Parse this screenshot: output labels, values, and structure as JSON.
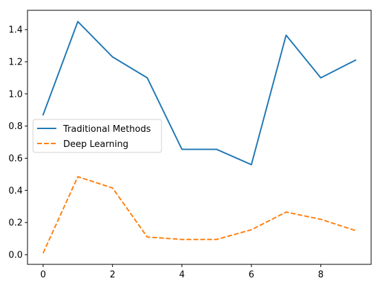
{
  "chart_data": {
    "type": "line",
    "x": [
      0,
      1,
      2,
      3,
      4,
      5,
      6,
      7,
      8,
      9
    ],
    "series": [
      {
        "name": "Traditional Methods",
        "values": [
          0.87,
          1.45,
          1.23,
          1.1,
          0.655,
          0.655,
          0.56,
          1.365,
          1.1,
          1.21
        ],
        "color": "#1f77b4",
        "style": "solid"
      },
      {
        "name": "Deep Learning",
        "values": [
          0.01,
          0.485,
          0.415,
          0.11,
          0.095,
          0.095,
          0.155,
          0.265,
          0.22,
          0.15
        ],
        "color": "#ff7f0e",
        "style": "dashed"
      }
    ],
    "xlim": [
      -0.45,
      9.45
    ],
    "ylim": [
      -0.06,
      1.52
    ],
    "x_ticks": [
      0,
      2,
      4,
      6,
      8
    ],
    "y_ticks": [
      0.0,
      0.2,
      0.4,
      0.6,
      0.8,
      1.0,
      1.2,
      1.4
    ],
    "x_tick_labels": [
      "0",
      "2",
      "4",
      "6",
      "8"
    ],
    "y_tick_labels": [
      "0.0",
      "0.2",
      "0.4",
      "0.6",
      "0.8",
      "1.0",
      "1.2",
      "1.4"
    ],
    "title": "",
    "xlabel": "",
    "ylabel": "",
    "grid": false,
    "legend": {
      "placement": "center-left"
    }
  }
}
